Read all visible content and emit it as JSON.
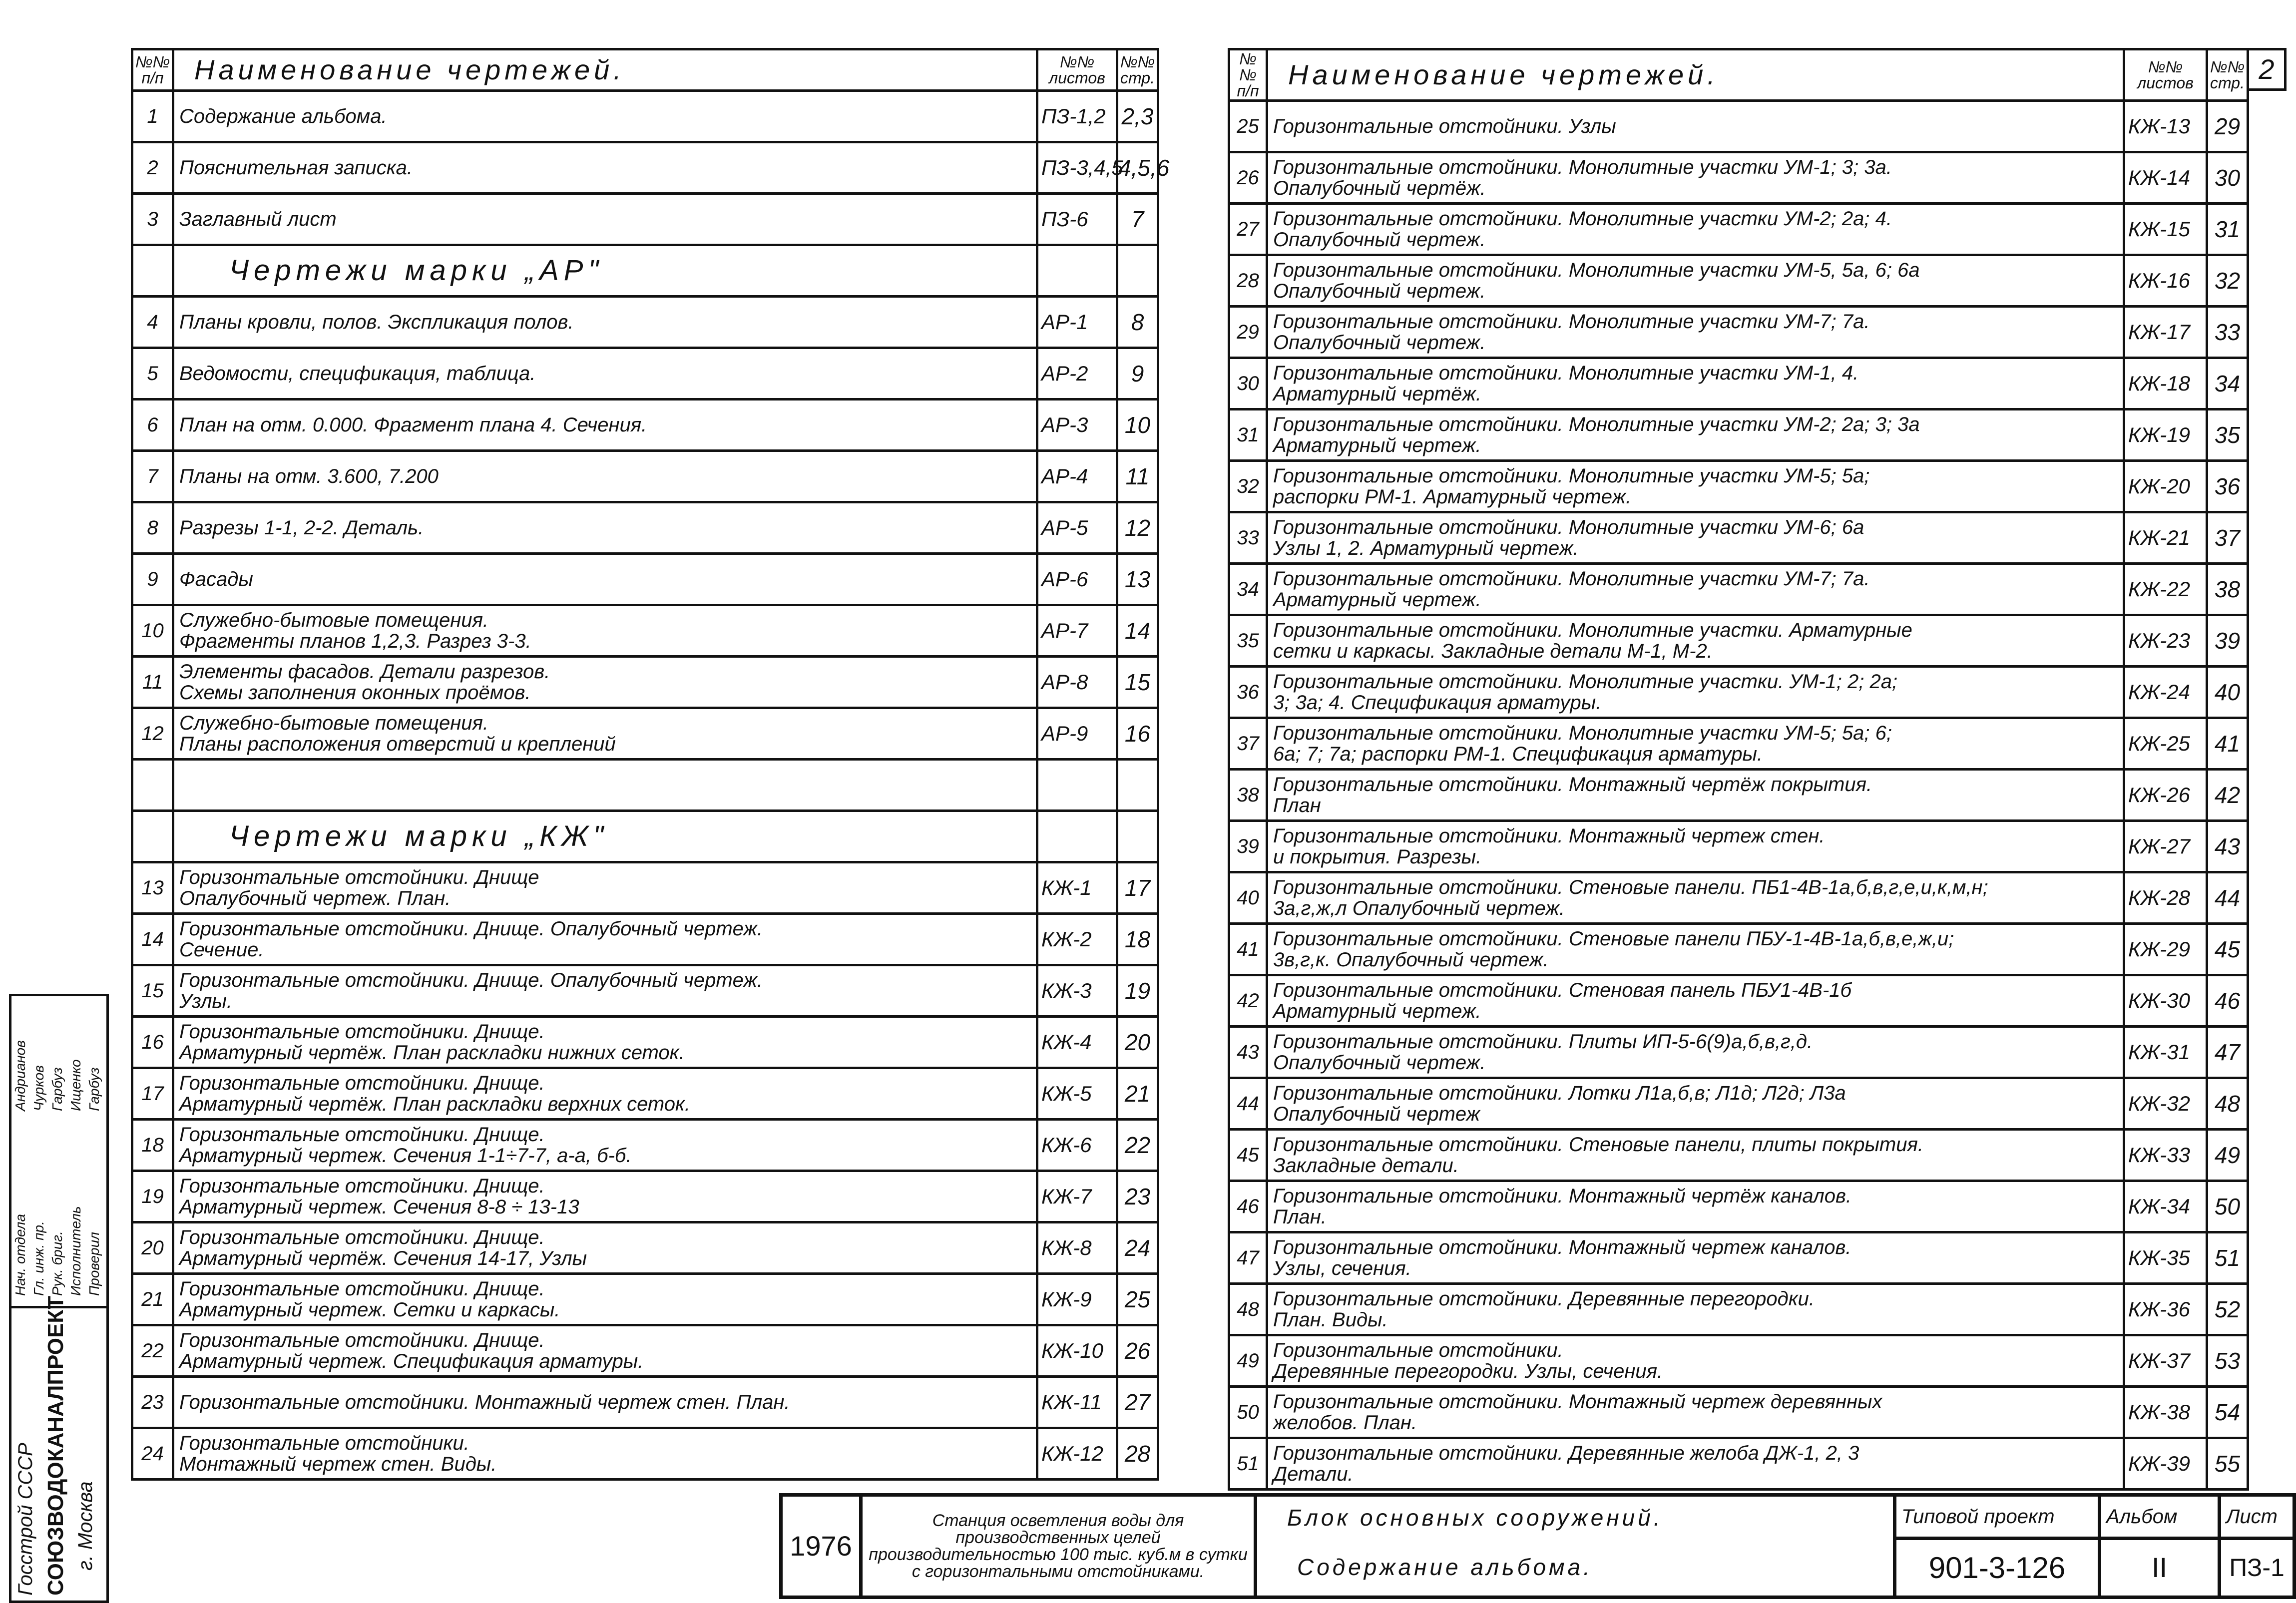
{
  "sheet_number": "2",
  "headers": {
    "num": "№№ п/п",
    "name": "Наименование чертежей.",
    "sheet": "№№ листов",
    "page": "№№ стр."
  },
  "left_rows": [
    {
      "n": "1",
      "lines": [
        "Содержание альбома."
      ],
      "sheet": "ПЗ-1,2",
      "page": "2,3"
    },
    {
      "n": "2",
      "lines": [
        "Пояснительная записка."
      ],
      "sheet": "ПЗ-3,4,5",
      "page": "4,5,6"
    },
    {
      "n": "3",
      "lines": [
        "Заглавный лист"
      ],
      "sheet": "ПЗ-6",
      "page": "7"
    },
    {
      "section": "Чертежи марки „АР\""
    },
    {
      "n": "4",
      "lines": [
        "Планы кровли, полов. Экспликация полов."
      ],
      "sheet": "АР-1",
      "page": "8"
    },
    {
      "n": "5",
      "lines": [
        "Ведомости, спецификация, таблица."
      ],
      "sheet": "АР-2",
      "page": "9"
    },
    {
      "n": "6",
      "lines": [
        "План на отм. 0.000. Фрагмент плана 4. Сечения."
      ],
      "sheet": "АР-3",
      "page": "10"
    },
    {
      "n": "7",
      "lines": [
        "Планы на отм. 3.600, 7.200"
      ],
      "sheet": "АР-4",
      "page": "11"
    },
    {
      "n": "8",
      "lines": [
        "Разрезы 1-1, 2-2. Деталь."
      ],
      "sheet": "АР-5",
      "page": "12"
    },
    {
      "n": "9",
      "lines": [
        "Фасады"
      ],
      "sheet": "АР-6",
      "page": "13"
    },
    {
      "n": "10",
      "lines": [
        "Служебно-бытовые помещения.",
        "Фрагменты планов 1,2,3. Разрез 3-3."
      ],
      "sheet": "АР-7",
      "page": "14"
    },
    {
      "n": "11",
      "lines": [
        "Элементы фасадов. Детали разрезов.",
        "Схемы заполнения оконных проёмов."
      ],
      "sheet": "АР-8",
      "page": "15"
    },
    {
      "n": "12",
      "lines": [
        "Служебно-бытовые помещения.",
        "Планы расположения отверстий и креплений"
      ],
      "sheet": "АР-9",
      "page": "16"
    },
    {
      "blank": true
    },
    {
      "section": "Чертежи марки „КЖ\""
    },
    {
      "n": "13",
      "lines": [
        "Горизонтальные отстойники. Днище",
        "Опалубочный чертеж. План."
      ],
      "sheet": "КЖ-1",
      "page": "17"
    },
    {
      "n": "14",
      "lines": [
        "Горизонтальные отстойники. Днище. Опалубочный чертеж.",
        "Сечение."
      ],
      "sheet": "КЖ-2",
      "page": "18"
    },
    {
      "n": "15",
      "lines": [
        "Горизонтальные отстойники. Днище. Опалубочный чертеж.",
        "Узлы."
      ],
      "sheet": "КЖ-3",
      "page": "19"
    },
    {
      "n": "16",
      "lines": [
        "Горизонтальные отстойники. Днище.",
        "Арматурный чертёж. План раскладки нижних сеток."
      ],
      "sheet": "КЖ-4",
      "page": "20"
    },
    {
      "n": "17",
      "lines": [
        "Горизонтальные отстойники. Днище.",
        "Арматурный чертёж. План раскладки верхних сеток."
      ],
      "sheet": "КЖ-5",
      "page": "21"
    },
    {
      "n": "18",
      "lines": [
        "Горизонтальные отстойники. Днище.",
        "Арматурный чертеж. Сечения 1-1÷7-7, а-а, б-б."
      ],
      "sheet": "КЖ-6",
      "page": "22"
    },
    {
      "n": "19",
      "lines": [
        "Горизонтальные отстойники. Днище.",
        "Арматурный чертеж. Сечения 8-8 ÷ 13-13"
      ],
      "sheet": "КЖ-7",
      "page": "23"
    },
    {
      "n": "20",
      "lines": [
        "Горизонтальные отстойники. Днище.",
        "Арматурный чертёж. Сечения 14-17, Узлы"
      ],
      "sheet": "КЖ-8",
      "page": "24"
    },
    {
      "n": "21",
      "lines": [
        "Горизонтальные отстойники. Днище.",
        "Арматурный чертеж. Сетки и каркасы."
      ],
      "sheet": "КЖ-9",
      "page": "25"
    },
    {
      "n": "22",
      "lines": [
        "Горизонтальные отстойники. Днище.",
        "Арматурный чертеж. Спецификация арматуры."
      ],
      "sheet": "КЖ-10",
      "page": "26"
    },
    {
      "n": "23",
      "lines": [
        "Горизонтальные отстойники. Монтажный чертеж стен. План."
      ],
      "sheet": "КЖ-11",
      "page": "27"
    },
    {
      "n": "24",
      "lines": [
        "Горизонтальные отстойники.",
        "Монтажный чертеж стен. Виды."
      ],
      "sheet": "КЖ-12",
      "page": "28"
    }
  ],
  "right_rows": [
    {
      "n": "25",
      "lines": [
        "Горизонтальные отстойники. Узлы"
      ],
      "sheet": "КЖ-13",
      "page": "29"
    },
    {
      "n": "26",
      "lines": [
        "Горизонтальные отстойники. Монолитные участки УМ-1; 3; 3а.",
        "Опалубочный чертёж."
      ],
      "sheet": "КЖ-14",
      "page": "30"
    },
    {
      "n": "27",
      "lines": [
        "Горизонтальные отстойники. Монолитные участки УМ-2; 2а; 4.",
        "Опалубочный чертеж."
      ],
      "sheet": "КЖ-15",
      "page": "31"
    },
    {
      "n": "28",
      "lines": [
        "Горизонтальные отстойники. Монолитные участки УМ-5, 5а, 6; 6а",
        "Опалубочный чертеж."
      ],
      "sheet": "КЖ-16",
      "page": "32"
    },
    {
      "n": "29",
      "lines": [
        "Горизонтальные отстойники. Монолитные участки УМ-7; 7а.",
        "Опалубочный чертеж."
      ],
      "sheet": "КЖ-17",
      "page": "33"
    },
    {
      "n": "30",
      "lines": [
        "Горизонтальные отстойники. Монолитные участки УМ-1, 4.",
        "Арматурный чертёж."
      ],
      "sheet": "КЖ-18",
      "page": "34"
    },
    {
      "n": "31",
      "lines": [
        "Горизонтальные отстойники. Монолитные участки УМ-2; 2а; 3; 3а",
        "Арматурный чертеж."
      ],
      "sheet": "КЖ-19",
      "page": "35"
    },
    {
      "n": "32",
      "lines": [
        "Горизонтальные отстойники. Монолитные участки УМ-5; 5а;",
        "распорки РМ-1. Арматурный чертеж."
      ],
      "sheet": "КЖ-20",
      "page": "36"
    },
    {
      "n": "33",
      "lines": [
        "Горизонтальные отстойники. Монолитные участки УМ-6; 6а",
        "Узлы 1, 2. Арматурный чертеж."
      ],
      "sheet": "КЖ-21",
      "page": "37"
    },
    {
      "n": "34",
      "lines": [
        "Горизонтальные отстойники. Монолитные участки УМ-7; 7а.",
        "Арматурный чертеж."
      ],
      "sheet": "КЖ-22",
      "page": "38"
    },
    {
      "n": "35",
      "lines": [
        "Горизонтальные отстойники. Монолитные участки. Арматурные",
        "сетки и каркасы. Закладные детали М-1, М-2."
      ],
      "sheet": "КЖ-23",
      "page": "39"
    },
    {
      "n": "36",
      "lines": [
        "Горизонтальные отстойники. Монолитные участки. УМ-1; 2; 2а;",
        "3; 3а; 4. Спецификация арматуры."
      ],
      "sheet": "КЖ-24",
      "page": "40"
    },
    {
      "n": "37",
      "lines": [
        "Горизонтальные отстойники. Монолитные участки УМ-5; 5а; 6;",
        "6а; 7; 7а; распорки РМ-1. Спецификация арматуры."
      ],
      "sheet": "КЖ-25",
      "page": "41"
    },
    {
      "n": "38",
      "lines": [
        "Горизонтальные отстойники. Монтажный чертёж покрытия.",
        "План"
      ],
      "sheet": "КЖ-26",
      "page": "42"
    },
    {
      "n": "39",
      "lines": [
        "Горизонтальные отстойники. Монтажный чертеж стен.",
        "и покрытия. Разрезы."
      ],
      "sheet": "КЖ-27",
      "page": "43"
    },
    {
      "n": "40",
      "lines": [
        "Горизонтальные отстойники. Стеновые панели. ПБ1-4В-1а,б,в,г,е,и,к,м,н;",
        "3а,г,ж,л Опалубочный чертеж."
      ],
      "sheet": "КЖ-28",
      "page": "44"
    },
    {
      "n": "41",
      "lines": [
        "Горизонтальные отстойники. Стеновые панели ПБУ-1-4В-1а,б,в,е,ж,и;",
        "3в,г,к. Опалубочный чертеж."
      ],
      "sheet": "КЖ-29",
      "page": "45"
    },
    {
      "n": "42",
      "lines": [
        "Горизонтальные отстойники. Стеновая панель ПБУ1-4В-1б",
        "Арматурный чертеж."
      ],
      "sheet": "КЖ-30",
      "page": "46"
    },
    {
      "n": "43",
      "lines": [
        "Горизонтальные отстойники. Плиты ИП-5-6(9)а,б,в,г,д.",
        "Опалубочный чертеж."
      ],
      "sheet": "КЖ-31",
      "page": "47"
    },
    {
      "n": "44",
      "lines": [
        "Горизонтальные отстойники. Лотки Л1а,б,в; Л1д; Л2д; Л3а",
        "Опалубочный чертеж"
      ],
      "sheet": "КЖ-32",
      "page": "48"
    },
    {
      "n": "45",
      "lines": [
        "Горизонтальные отстойники. Стеновые панели, плиты покрытия.",
        "Закладные детали."
      ],
      "sheet": "КЖ-33",
      "page": "49"
    },
    {
      "n": "46",
      "lines": [
        "Горизонтальные отстойники. Монтажный чертёж каналов.",
        "План."
      ],
      "sheet": "КЖ-34",
      "page": "50"
    },
    {
      "n": "47",
      "lines": [
        "Горизонтальные отстойники. Монтажный чертеж каналов.",
        "Узлы, сечения."
      ],
      "sheet": "КЖ-35",
      "page": "51"
    },
    {
      "n": "48",
      "lines": [
        "Горизонтальные отстойники. Деревянные перегородки.",
        "План. Виды."
      ],
      "sheet": "КЖ-36",
      "page": "52"
    },
    {
      "n": "49",
      "lines": [
        "Горизонтальные отстойники.",
        "Деревянные перегородки. Узлы, сечения."
      ],
      "sheet": "КЖ-37",
      "page": "53"
    },
    {
      "n": "50",
      "lines": [
        "Горизонтальные отстойники. Монтажный чертеж деревянных",
        "желобов. План."
      ],
      "sheet": "КЖ-38",
      "page": "54"
    },
    {
      "n": "51",
      "lines": [
        "Горизонтальные отстойники. Деревянные желоба ДЖ-1, 2, 3",
        "Детали."
      ],
      "sheet": "КЖ-39",
      "page": "55"
    }
  ],
  "stamp": {
    "org": [
      "Госстрой СССР",
      "СОЮЗВОДОКАНАЛПРОЕКТ",
      "г. Москва"
    ],
    "roles": [
      {
        "role": "Нач. отдела",
        "name": "Андрианов"
      },
      {
        "role": "Гл. инж. пр.",
        "name": "Чурков"
      },
      {
        "role": "Рук. бриг.",
        "name": "Гарбуз"
      },
      {
        "role": "Исполнитель",
        "name": "Ищенко"
      },
      {
        "role": "Проверил",
        "name": "Гарбуз"
      }
    ]
  },
  "title_block": {
    "year": "1976",
    "project_desc": "Станция осветления воды для производственных целей производительностью 100 тыс. куб.м в сутки с горизонтальными отстойниками.",
    "block": "Блок основных сооружений.",
    "content": "Содержание альбома.",
    "type_project_label": "Типовой проект",
    "type_project": "901-3-126",
    "album_label": "Альбом",
    "album": "II",
    "sheet_label": "Лист",
    "sheet": "ПЗ-1"
  }
}
